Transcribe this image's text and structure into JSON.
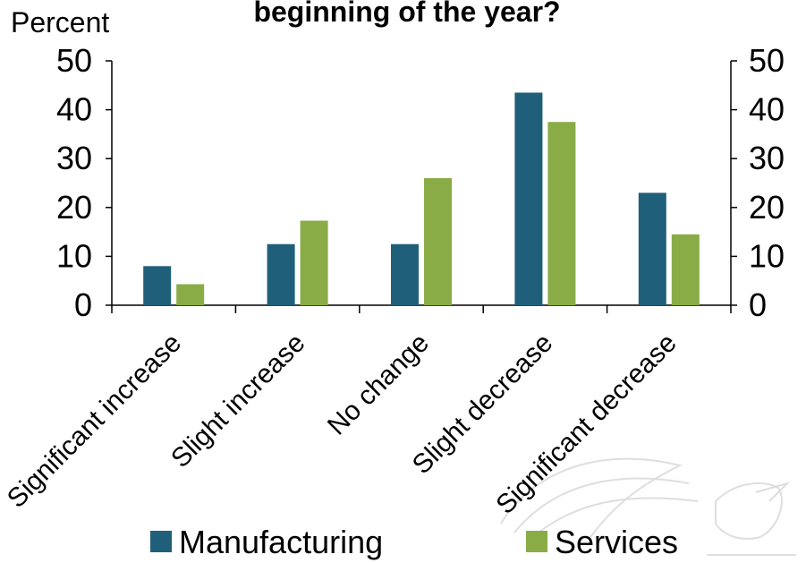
{
  "chart_data": {
    "type": "bar",
    "title": "beginning of the year?",
    "ylabel": "Percent",
    "categories": [
      "Significant increase",
      "Slight increase",
      "No change",
      "Slight decrease",
      "Significant decrease"
    ],
    "series": [
      {
        "name": "Manufacturing",
        "values": [
          8,
          12.5,
          12.5,
          43.5,
          23
        ],
        "color": "#1f5f7a"
      },
      {
        "name": "Services",
        "values": [
          4.3,
          17.3,
          26,
          37.5,
          14.5
        ],
        "color": "#8aac47"
      }
    ],
    "ylim": [
      0,
      50
    ],
    "yticks": [
      0,
      10,
      20,
      30,
      40,
      50
    ],
    "secondary_axis": true,
    "grid": false,
    "legend": "bottom"
  }
}
